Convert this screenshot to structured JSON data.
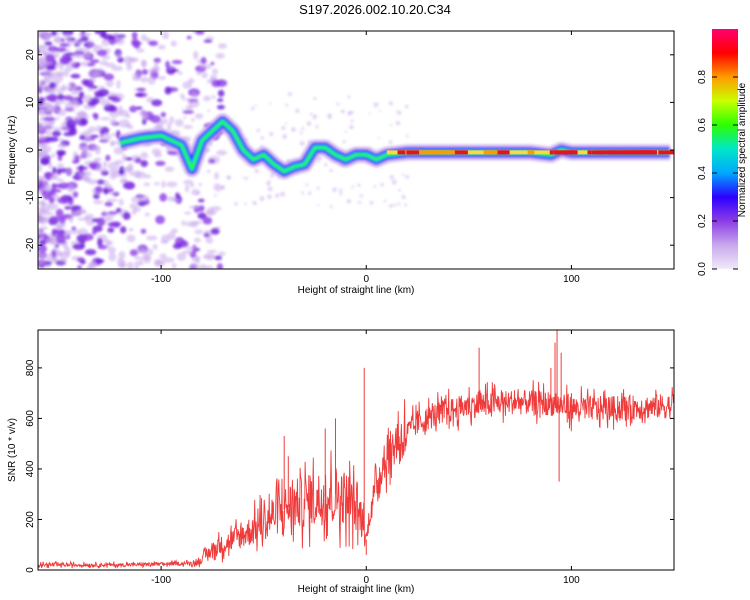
{
  "title": "S197.2026.002.10.20.C34",
  "colors": {
    "line": "#ef3b3b",
    "axis": "#000000",
    "track_low": "#ffd93a",
    "track_high": "#e8121c",
    "cmap": [
      "#f0eaf8",
      "#c8a8ec",
      "#8c3ce6",
      "#2c00ff",
      "#00a8ff",
      "#00e6c8",
      "#2cff00",
      "#c8ff00",
      "#ff9a00",
      "#ff0000",
      "#ff0070"
    ]
  },
  "chart_data": [
    {
      "type": "heatmap",
      "title": "S197.2026.002.10.20.C34",
      "xlabel": "Height of straight line (km)",
      "ylabel": "Frequency (Hz)",
      "xlim": [
        -160,
        150
      ],
      "ylim": [
        -25,
        25
      ],
      "xticks": [
        -100,
        0,
        100
      ],
      "yticks": [
        -20,
        -10,
        0,
        10,
        20
      ],
      "colorbar": {
        "label": "Normalized spectral amplitude",
        "range": [
          0,
          1
        ],
        "ticks": [
          "0.0",
          "0.2",
          "0.4",
          "0.6",
          "0.8"
        ]
      },
      "ridge": {
        "x": [
          -120,
          -110,
          -100,
          -90,
          -85,
          -80,
          -75,
          -70,
          -65,
          -60,
          -55,
          -50,
          -45,
          -40,
          -35,
          -30,
          -25,
          -20,
          -15,
          -10,
          -5,
          0,
          5,
          10,
          20,
          40,
          60,
          80,
          90,
          95,
          100,
          120,
          148
        ],
        "y": [
          1.5,
          2.5,
          3.0,
          1.0,
          -4.0,
          2.0,
          4.0,
          6.0,
          4.0,
          0.0,
          -2.0,
          -1.0,
          -3.0,
          -4.5,
          -3.5,
          -3.0,
          0.5,
          0.5,
          -1.0,
          -2.0,
          -1.0,
          -1.0,
          -2.0,
          -1.0,
          -0.5,
          -0.5,
          -0.5,
          -0.5,
          -1.0,
          0.0,
          -0.5,
          -0.5,
          -0.5
        ]
      }
    },
    {
      "type": "line",
      "xlabel": "Height of straight line (km)",
      "ylabel": "SNR (10 * v/v)",
      "xlim": [
        -160,
        150
      ],
      "ylim": [
        0,
        950
      ],
      "xticks": [
        -100,
        0,
        100
      ],
      "yticks": [
        0,
        200,
        400,
        600,
        800
      ],
      "series": [
        {
          "name": "SNR",
          "trend_x": [
            -160,
            -120,
            -90,
            -82,
            -75,
            -65,
            -55,
            -45,
            -35,
            -25,
            -15,
            -8,
            -2,
            0,
            3,
            8,
            15,
            25,
            35,
            50,
            70,
            90,
            100,
            120,
            150
          ],
          "trend_y": [
            20,
            20,
            25,
            30,
            80,
            120,
            160,
            220,
            260,
            280,
            300,
            280,
            200,
            120,
            280,
            420,
            510,
            580,
            620,
            650,
            665,
            660,
            640,
            640,
            650
          ],
          "spikes_x": [
            -40,
            -38,
            -20,
            -15,
            -1,
            0,
            25,
            55,
            90,
            92,
            93,
            94,
            95,
            100
          ],
          "spikes_y": [
            530,
            450,
            560,
            600,
            800,
            60,
            630,
            880,
            800,
            900,
            950,
            350,
            860,
            700
          ]
        }
      ]
    }
  ]
}
